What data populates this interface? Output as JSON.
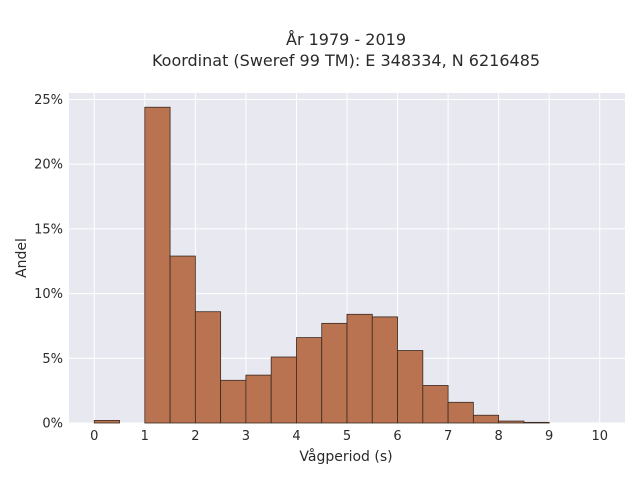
{
  "chart_data": {
    "type": "bar",
    "title_lines": [
      "År 1979 - 2019",
      "Koordinat (Sweref 99 TM): E 348334, N 6216485"
    ],
    "xlabel": "Vågperiod (s)",
    "ylabel": "Andel",
    "bin_width": 0.5,
    "bin_starts": [
      0,
      1,
      1.5,
      2,
      2.5,
      3,
      3.5,
      4,
      4.5,
      5,
      5.5,
      6,
      6.5,
      7,
      7.5,
      8,
      8.5
    ],
    "values": [
      0.2,
      24.4,
      12.9,
      8.6,
      3.3,
      3.7,
      5.1,
      6.6,
      7.7,
      8.4,
      8.2,
      5.6,
      2.9,
      1.6,
      0.6,
      0.15,
      0.05
    ],
    "xlim": [
      -0.5,
      10.5
    ],
    "ylim": [
      0,
      25.5
    ],
    "xticks": [
      0,
      1,
      2,
      3,
      4,
      5,
      6,
      7,
      8,
      9,
      10
    ],
    "yticks": [
      0,
      5,
      10,
      15,
      20,
      25
    ],
    "ytick_labels": [
      "0%",
      "5%",
      "10%",
      "15%",
      "20%",
      "25%"
    ],
    "grid": true,
    "colors": {
      "bar_fill": "#b97350",
      "plot_background": "#e8e8f0",
      "grid": "#ffffff"
    }
  }
}
